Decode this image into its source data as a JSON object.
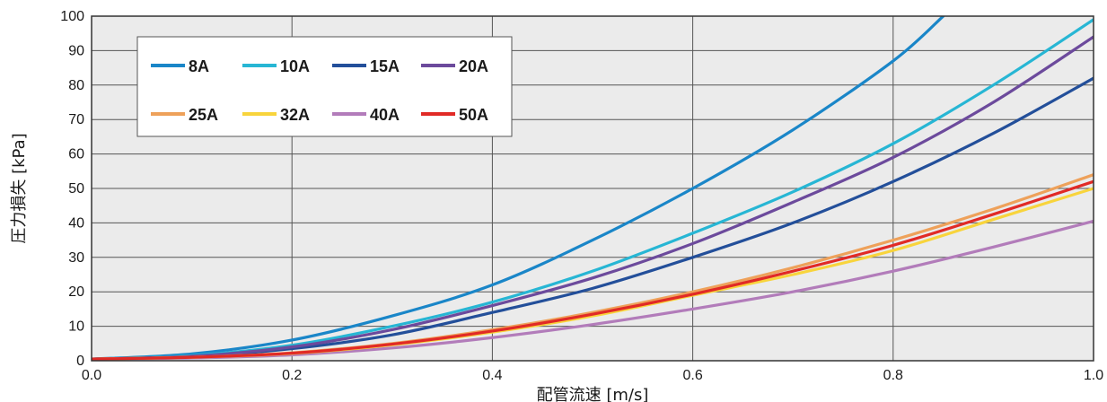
{
  "chart_data": {
    "type": "line",
    "xlabel": "配管流速 [m/s]",
    "ylabel": "圧力損失 [kPa]",
    "xlim": [
      0.0,
      1.0
    ],
    "ylim": [
      0,
      100
    ],
    "x_ticks": [
      "0.0",
      "0.2",
      "0.4",
      "0.6",
      "0.8",
      "1.0"
    ],
    "y_ticks": [
      "0",
      "10",
      "20",
      "30",
      "40",
      "50",
      "60",
      "70",
      "80",
      "90",
      "100"
    ],
    "grid": true,
    "legend_position": "top-left",
    "x": [
      0.0,
      0.1,
      0.2,
      0.3,
      0.4,
      0.5,
      0.6,
      0.7,
      0.8,
      0.9,
      1.0
    ],
    "series": [
      {
        "name": "8A",
        "color": "#1a86c8",
        "x": [
          0.0,
          0.1,
          0.2,
          0.3,
          0.4,
          0.5,
          0.6,
          0.7,
          0.8,
          0.85
        ],
        "values": [
          0.5,
          2,
          6,
          13,
          22,
          35,
          50,
          67,
          87,
          100
        ]
      },
      {
        "name": "10A",
        "color": "#27b6d4",
        "values": [
          0.5,
          1.5,
          4.5,
          10,
          17,
          26,
          37,
          49,
          63,
          80,
          99
        ]
      },
      {
        "name": "15A",
        "color": "#234f9a",
        "values": [
          0.5,
          1.2,
          3.5,
          7.5,
          14,
          21,
          30,
          40,
          52,
          66,
          82
        ]
      },
      {
        "name": "20A",
        "color": "#6c4a9c",
        "values": [
          0.5,
          1.3,
          4,
          9,
          16,
          24,
          34,
          46,
          59,
          75,
          94
        ]
      },
      {
        "name": "25A",
        "color": "#eea15a",
        "values": [
          0.5,
          1,
          2.3,
          5,
          9,
          14,
          20,
          27,
          35,
          44,
          54
        ]
      },
      {
        "name": "32A",
        "color": "#f8d43c",
        "values": [
          0.5,
          1,
          2.1,
          4.6,
          8.3,
          13,
          19,
          25,
          32,
          41,
          50
        ]
      },
      {
        "name": "40A",
        "color": "#b27cba",
        "values": [
          0.5,
          0.8,
          1.7,
          3.7,
          6.7,
          10.5,
          15,
          20,
          26,
          33,
          40.5
        ]
      },
      {
        "name": "50A",
        "color": "#e12a26",
        "values": [
          0.5,
          1,
          2.2,
          4.8,
          8.6,
          13.5,
          19.3,
          26,
          33.5,
          42.5,
          52
        ]
      }
    ]
  }
}
